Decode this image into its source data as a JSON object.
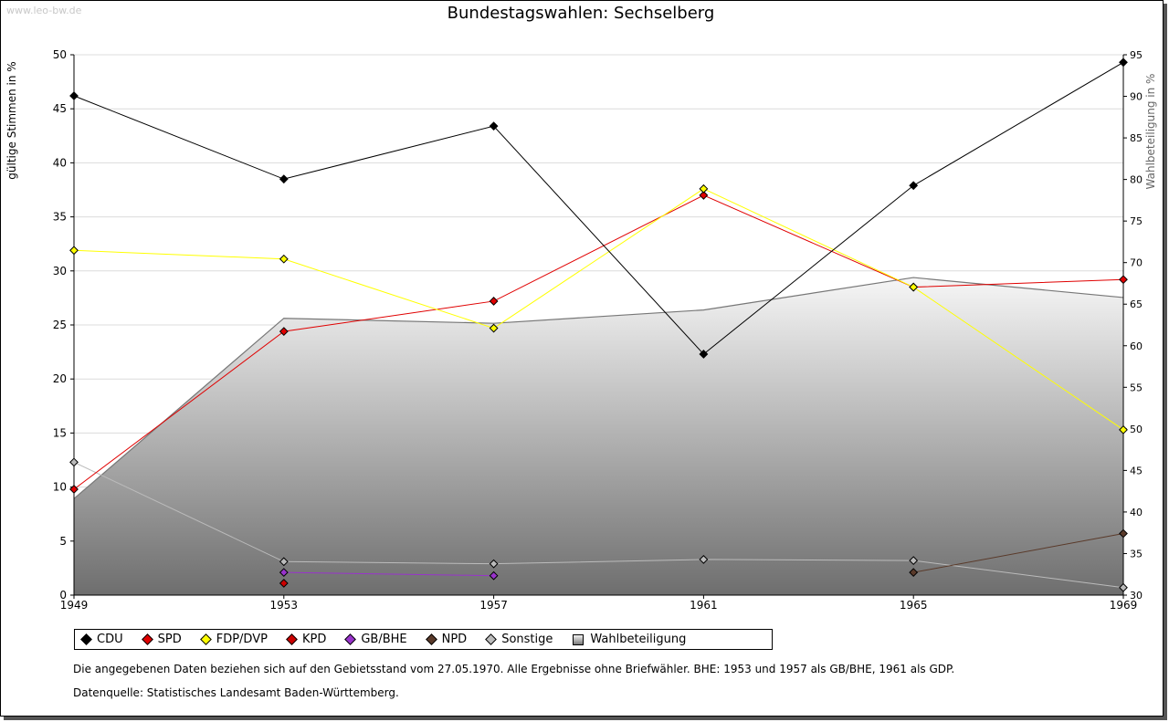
{
  "watermark": "www.leo-bw.de",
  "chart_data": {
    "type": "line",
    "title": "Bundestagswahlen: Sechselberg",
    "ylabel": "gültige Stimmen in %",
    "y2label": "Wahlbeteiligung in %",
    "x": [
      "1949",
      "1953",
      "1957",
      "1961",
      "1965",
      "1969"
    ],
    "ylim": [
      0,
      50
    ],
    "y2lim": [
      30,
      95
    ],
    "yticks": [
      0,
      5,
      10,
      15,
      20,
      25,
      30,
      35,
      40,
      45,
      50
    ],
    "y2ticks": [
      30,
      35,
      40,
      45,
      50,
      55,
      60,
      65,
      70,
      75,
      80,
      85,
      90,
      95
    ],
    "series": [
      {
        "name": "CDU",
        "color": "#000000",
        "values": [
          46.2,
          38.5,
          43.4,
          22.3,
          37.9,
          49.3
        ]
      },
      {
        "name": "SPD",
        "color": "#e00000",
        "values": [
          9.8,
          24.4,
          27.2,
          37.0,
          28.5,
          29.2
        ]
      },
      {
        "name": "FDP/DVP",
        "color": "#ffff00",
        "values": [
          31.9,
          31.1,
          24.7,
          37.6,
          28.5,
          15.3
        ]
      },
      {
        "name": "KPD",
        "color": "#cc0000",
        "values": [
          null,
          1.1,
          null,
          null,
          null,
          null
        ]
      },
      {
        "name": "GB/BHE",
        "color": "#9933cc",
        "values": [
          null,
          2.1,
          1.8,
          null,
          null,
          null
        ]
      },
      {
        "name": "NPD",
        "color": "#5a3a2a",
        "values": [
          null,
          null,
          null,
          null,
          2.1,
          5.7
        ]
      },
      {
        "name": "Sonstige",
        "color": "#bbbbbb",
        "values": [
          12.3,
          3.1,
          2.9,
          3.3,
          3.2,
          0.7
        ]
      }
    ],
    "turnout": {
      "name": "Wahlbeteiligung",
      "values": [
        41.6,
        63.3,
        62.7,
        64.3,
        68.2,
        65.8
      ]
    }
  },
  "notes": {
    "line1": "Die angegebenen Daten beziehen sich auf den Gebietsstand vom 27.05.1970. Alle Ergebnisse ohne Briefwähler. BHE: 1953 und 1957 als GB/BHE, 1961 als GDP.",
    "line2": "Datenquelle: Statistisches Landesamt Baden-Württemberg."
  }
}
